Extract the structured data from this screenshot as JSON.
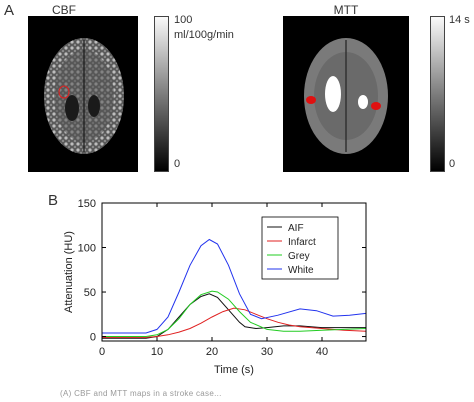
{
  "panel_a": {
    "letter": "A",
    "cbf": {
      "title": "CBF",
      "scale_max": "100",
      "scale_unit": "ml/100g/min",
      "scale_min": "0"
    },
    "mtt": {
      "title": "MTT",
      "scale_max": "14 s",
      "scale_min": "0"
    }
  },
  "panel_b": {
    "letter": "B"
  },
  "chart_data": {
    "type": "line",
    "xlabel": "Time (s)",
    "ylabel": "Attenuation (HU)",
    "xlim": [
      0,
      48
    ],
    "ylim": [
      -5,
      150
    ],
    "xticks": [
      0,
      10,
      20,
      30,
      40
    ],
    "yticks": [
      0,
      50,
      100,
      150
    ],
    "legend_position": "top-right",
    "series": [
      {
        "name": "AIF",
        "color": "#111111",
        "x": [
          0,
          4,
          8,
          10,
          12,
          14,
          16,
          18,
          19.5,
          21,
          23,
          25,
          26,
          28,
          30,
          33,
          36,
          40,
          44,
          48
        ],
        "y": [
          -2,
          -2,
          -2,
          0,
          8,
          22,
          36,
          45,
          48,
          44,
          30,
          16,
          11,
          9,
          10,
          12,
          12,
          10,
          10,
          10
        ]
      },
      {
        "name": "Infarct",
        "color": "#e02020",
        "x": [
          0,
          8,
          10,
          12,
          14,
          16,
          18,
          20,
          22,
          24,
          26,
          28,
          30,
          32,
          34,
          36,
          40,
          44,
          48
        ],
        "y": [
          -1,
          -1,
          0,
          2,
          5,
          9,
          15,
          22,
          28,
          32,
          30,
          25,
          20,
          16,
          13,
          11,
          9,
          7,
          6
        ]
      },
      {
        "name": "Grey",
        "color": "#22cc22",
        "x": [
          0,
          8,
          10,
          12,
          14,
          16,
          18,
          20,
          21,
          23,
          25,
          27,
          30,
          33,
          36,
          40,
          44,
          48
        ],
        "y": [
          0,
          0,
          2,
          8,
          20,
          36,
          47,
          51,
          50,
          42,
          28,
          16,
          8,
          6,
          6,
          7,
          8,
          9
        ]
      },
      {
        "name": "White",
        "color": "#2233ee",
        "x": [
          0,
          8,
          10,
          12,
          14,
          16,
          18,
          19.5,
          21,
          23,
          25,
          27,
          29,
          32,
          36,
          39,
          42,
          45,
          48
        ],
        "y": [
          4,
          4,
          8,
          22,
          50,
          80,
          102,
          109,
          104,
          80,
          48,
          25,
          20,
          24,
          31,
          29,
          23,
          24,
          26
        ]
      }
    ]
  },
  "caption": "(A) CBF and MTT maps in a stroke case..."
}
